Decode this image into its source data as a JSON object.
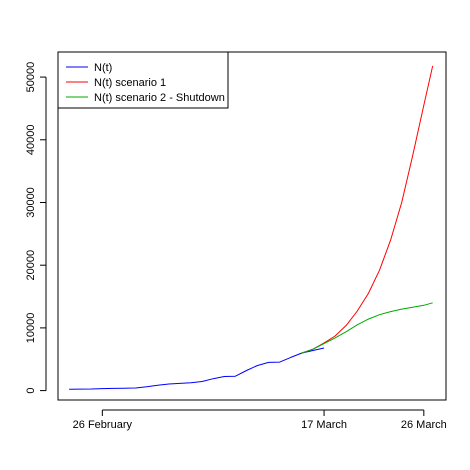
{
  "chart_data": {
    "type": "line",
    "title": "",
    "xlabel": "",
    "ylabel": "",
    "x_tick_labels": [
      {
        "day": 0,
        "label": "26 February"
      },
      {
        "day": 20,
        "label": "17 March"
      },
      {
        "day": 29,
        "label": "26 March"
      }
    ],
    "xlim": [
      -4,
      31
    ],
    "ylim": [
      -1500,
      54000
    ],
    "y_ticks": [
      0,
      10000,
      20000,
      30000,
      40000,
      50000
    ],
    "legend_position": "top-left",
    "series": [
      {
        "name": "N(t)",
        "color": "#0000ff",
        "points": [
          [
            -3,
            200
          ],
          [
            -1,
            250
          ],
          [
            0,
            320
          ],
          [
            1,
            350
          ],
          [
            2,
            380
          ],
          [
            3,
            420
          ],
          [
            4,
            600
          ],
          [
            5,
            850
          ],
          [
            6,
            1050
          ],
          [
            7,
            1150
          ],
          [
            8,
            1250
          ],
          [
            9,
            1450
          ],
          [
            10,
            1900
          ],
          [
            11,
            2250
          ],
          [
            12,
            2300
          ],
          [
            13,
            3200
          ],
          [
            14,
            4000
          ],
          [
            15,
            4500
          ],
          [
            16,
            4550
          ],
          [
            17,
            5300
          ],
          [
            18,
            6000
          ],
          [
            19,
            6400
          ],
          [
            20,
            6800
          ]
        ]
      },
      {
        "name": "N(t) scenario 1",
        "color": "#ff0000",
        "points": [
          [
            18,
            6000
          ],
          [
            19,
            6600
          ],
          [
            20,
            7600
          ],
          [
            21,
            8700
          ],
          [
            22,
            10400
          ],
          [
            23,
            12700
          ],
          [
            24,
            15500
          ],
          [
            25,
            19200
          ],
          [
            26,
            24000
          ],
          [
            27,
            30000
          ],
          [
            28,
            37500
          ],
          [
            29,
            45500
          ],
          [
            29.8,
            51800
          ]
        ]
      },
      {
        "name": "N(t) scenario 2 - Shutdown",
        "color": "#00aa00",
        "points": [
          [
            18,
            6000
          ],
          [
            19,
            6600
          ],
          [
            20,
            7500
          ],
          [
            21,
            8400
          ],
          [
            22,
            9400
          ],
          [
            23,
            10500
          ],
          [
            24,
            11400
          ],
          [
            25,
            12100
          ],
          [
            26,
            12600
          ],
          [
            27,
            13000
          ],
          [
            28,
            13300
          ],
          [
            29,
            13600
          ],
          [
            29.8,
            14000
          ]
        ]
      }
    ]
  }
}
